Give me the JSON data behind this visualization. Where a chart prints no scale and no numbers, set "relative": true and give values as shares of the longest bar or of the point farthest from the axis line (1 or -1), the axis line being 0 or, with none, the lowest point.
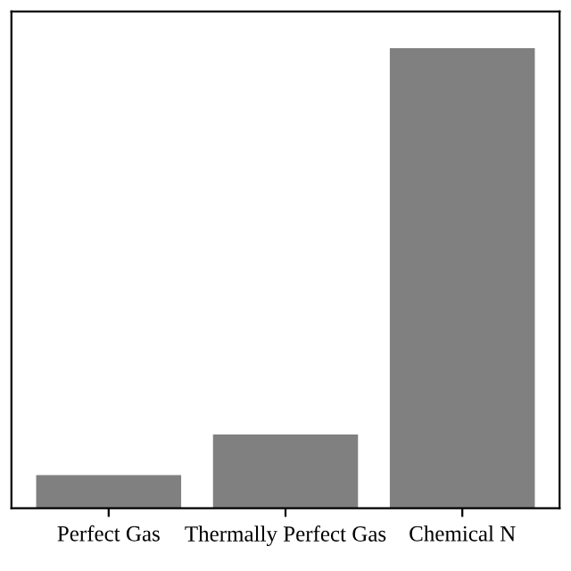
{
  "chart_data": {
    "type": "bar",
    "relative": true,
    "categories": [
      "Perfect Gas",
      "Thermally Perfect Gas",
      "Chemical N"
    ],
    "values": [
      0.072,
      0.16,
      1.0
    ],
    "color": "#808080",
    "grid": false,
    "legend": false
  }
}
